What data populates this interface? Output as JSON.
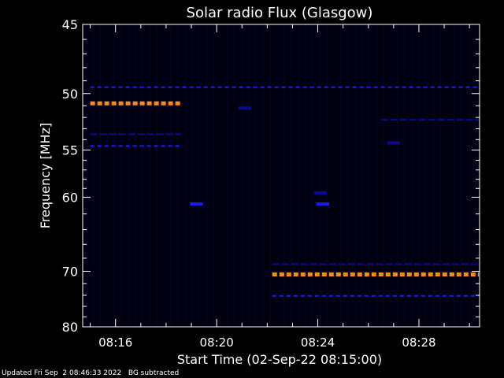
{
  "chart_data": {
    "type": "heatmap",
    "title": "Solar radio Flux (Glasgow)",
    "xlabel": "Start Time (02-Sep-22 08:15:00)",
    "ylabel": "Frequency [MHz]",
    "x_range_minutes_after_08_00": [
      14.7,
      30.4
    ],
    "ylim": [
      45,
      80
    ],
    "y_ticks": [
      45,
      50,
      55,
      60,
      70,
      80
    ],
    "x_ticks": [
      {
        "label": "08:16",
        "minute": 16
      },
      {
        "label": "08:20",
        "minute": 20
      },
      {
        "label": "08:24",
        "minute": 24
      },
      {
        "label": "08:28",
        "minute": 28
      }
    ],
    "background_color": "#000010",
    "strong_color": "#ff8c1a",
    "weak_color": "#1a1aff",
    "faint_color": "#0a0a90",
    "emission_bands": [
      {
        "freq_mhz": 50.8,
        "start_min": 15.0,
        "end_min": 18.6,
        "level": "strong"
      },
      {
        "freq_mhz": 70.5,
        "start_min": 22.2,
        "end_min": 30.4,
        "level": "strong"
      },
      {
        "freq_mhz": 54.6,
        "start_min": 15.0,
        "end_min": 18.6,
        "level": "weak"
      },
      {
        "freq_mhz": 53.5,
        "start_min": 15.0,
        "end_min": 18.6,
        "level": "faint"
      },
      {
        "freq_mhz": 49.5,
        "start_min": 15.0,
        "end_min": 30.4,
        "level": "weak"
      },
      {
        "freq_mhz": 68.9,
        "start_min": 22.2,
        "end_min": 30.4,
        "level": "faint"
      },
      {
        "freq_mhz": 74.1,
        "start_min": 22.2,
        "end_min": 30.4,
        "level": "weak"
      },
      {
        "freq_mhz": 52.2,
        "start_min": 26.5,
        "end_min": 30.4,
        "level": "faint"
      }
    ],
    "emission_spots": [
      {
        "freq_mhz": 60.8,
        "minute": 19.2,
        "level": "weak"
      },
      {
        "freq_mhz": 60.8,
        "minute": 24.2,
        "level": "weak"
      },
      {
        "freq_mhz": 59.5,
        "minute": 24.1,
        "level": "faint"
      },
      {
        "freq_mhz": 51.2,
        "minute": 21.1,
        "level": "faint"
      },
      {
        "freq_mhz": 54.3,
        "minute": 27.0,
        "level": "faint"
      }
    ]
  },
  "footer": {
    "updated": "Updated Fri Sep  2 08:46:33 2022",
    "note": "BG subtracted"
  }
}
